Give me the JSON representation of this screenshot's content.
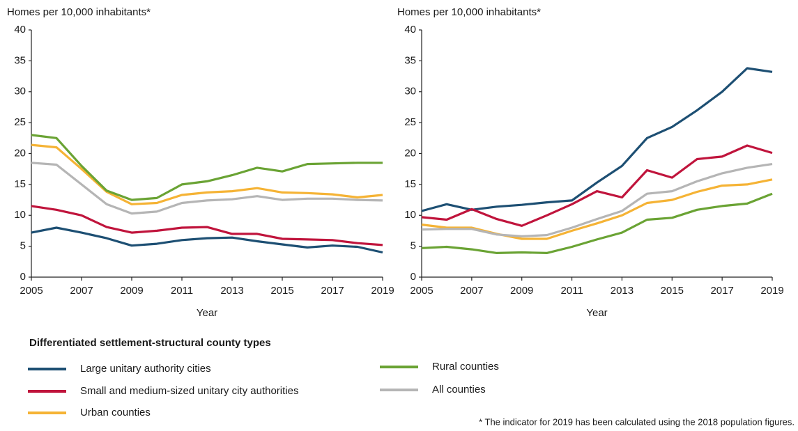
{
  "chart_data": [
    {
      "type": "line",
      "ylabel": "Homes per 10,000 inhabitants*",
      "xlabel": "Year",
      "x": [
        2005,
        2006,
        2007,
        2008,
        2009,
        2010,
        2011,
        2012,
        2013,
        2014,
        2015,
        2016,
        2017,
        2018,
        2019
      ],
      "xlim": [
        2005,
        2019
      ],
      "xticks": [
        2005,
        2007,
        2009,
        2011,
        2013,
        2015,
        2017,
        2019
      ],
      "ylim": [
        0,
        40
      ],
      "yticks": [
        0,
        5,
        10,
        15,
        20,
        25,
        30,
        35,
        40
      ],
      "grid": false,
      "series": [
        {
          "name": "Large unitary authority cities",
          "color": "#1d4f73",
          "values": [
            7.2,
            8.0,
            7.2,
            6.3,
            5.1,
            5.4,
            6.0,
            6.3,
            6.4,
            5.8,
            5.3,
            4.8,
            5.1,
            4.9,
            4.0
          ]
        },
        {
          "name": "Small and medium-sized unitary city authorities",
          "color": "#c0143c",
          "values": [
            11.5,
            10.9,
            10.0,
            8.1,
            7.2,
            7.5,
            8.0,
            8.1,
            7.0,
            7.0,
            6.2,
            6.1,
            6.0,
            5.5,
            5.2
          ]
        },
        {
          "name": "Urban counties",
          "color": "#f5b335",
          "values": [
            21.4,
            21.0,
            17.5,
            13.8,
            11.8,
            12.0,
            13.3,
            13.7,
            13.9,
            14.4,
            13.7,
            13.6,
            13.4,
            12.9,
            13.3
          ]
        },
        {
          "name": "Rural counties",
          "color": "#6aa334",
          "values": [
            23.0,
            22.5,
            18.0,
            14.0,
            12.5,
            12.8,
            15.0,
            15.5,
            16.5,
            17.7,
            17.1,
            18.3,
            18.4,
            18.5,
            18.5
          ]
        },
        {
          "name": "All counties",
          "color": "#b5b5b5",
          "values": [
            18.5,
            18.2,
            15.0,
            11.8,
            10.3,
            10.6,
            12.0,
            12.4,
            12.6,
            13.1,
            12.5,
            12.7,
            12.7,
            12.5,
            12.4
          ]
        }
      ]
    },
    {
      "type": "line",
      "ylabel": "Homes per 10,000 inhabitants*",
      "xlabel": "Year",
      "x": [
        2005,
        2006,
        2007,
        2008,
        2009,
        2010,
        2011,
        2012,
        2013,
        2014,
        2015,
        2016,
        2017,
        2018,
        2019
      ],
      "xlim": [
        2005,
        2019
      ],
      "xticks": [
        2005,
        2007,
        2009,
        2011,
        2013,
        2015,
        2017,
        2019
      ],
      "ylim": [
        0,
        40
      ],
      "yticks": [
        0,
        5,
        10,
        15,
        20,
        25,
        30,
        35,
        40
      ],
      "grid": false,
      "series": [
        {
          "name": "Large unitary authority cities",
          "color": "#1d4f73",
          "values": [
            10.7,
            11.8,
            10.9,
            11.4,
            11.7,
            12.1,
            12.4,
            15.3,
            18.0,
            22.5,
            24.3,
            27.0,
            30.0,
            33.8,
            33.2
          ]
        },
        {
          "name": "Small and medium-sized unitary city authorities",
          "color": "#c0143c",
          "values": [
            9.7,
            9.3,
            11.0,
            9.4,
            8.3,
            10.0,
            11.8,
            13.9,
            12.9,
            17.3,
            16.1,
            19.1,
            19.5,
            21.3,
            20.1
          ]
        },
        {
          "name": "Urban counties",
          "color": "#f5b335",
          "values": [
            8.5,
            8.0,
            8.0,
            7.0,
            6.2,
            6.2,
            7.5,
            8.7,
            10.0,
            12.0,
            12.5,
            13.8,
            14.8,
            15.0,
            15.8
          ]
        },
        {
          "name": "Rural counties",
          "color": "#6aa334",
          "values": [
            4.7,
            4.9,
            4.5,
            3.9,
            4.0,
            3.9,
            4.9,
            6.1,
            7.2,
            9.3,
            9.6,
            10.9,
            11.5,
            11.9,
            13.5
          ]
        },
        {
          "name": "All counties",
          "color": "#b5b5b5",
          "values": [
            7.7,
            7.8,
            7.8,
            6.9,
            6.6,
            6.8,
            8.0,
            9.4,
            10.7,
            13.5,
            13.9,
            15.5,
            16.8,
            17.7,
            18.3
          ]
        }
      ]
    }
  ],
  "legend_title": "Differentiated settlement-structural county types",
  "footnote": "* The indicator for 2019 has been calculated using the 2018 population figures."
}
